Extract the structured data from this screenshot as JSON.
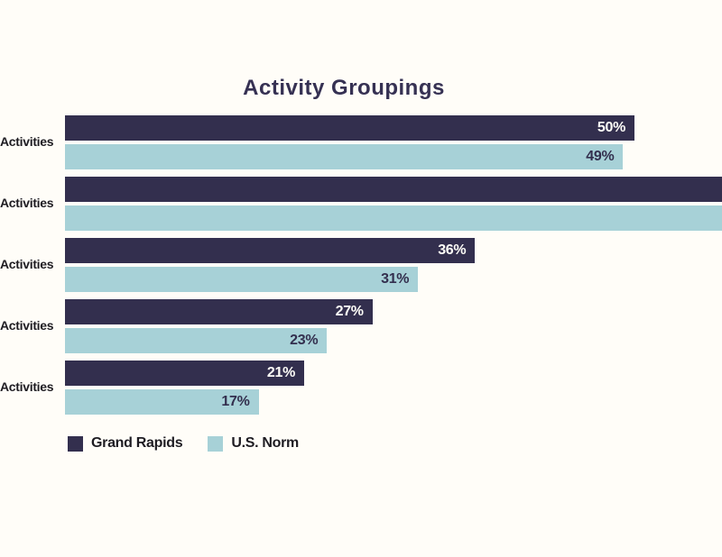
{
  "title": "Activity Groupings",
  "colors": {
    "background": "#fffdf8",
    "grand_rapids": "#332f4e",
    "us_norm": "#a7d1d7",
    "title_text": "#363153",
    "label_text": "#1e1c22",
    "value_on_dark": "#fdfcf7",
    "value_on_light": "#332f4e"
  },
  "groups": [
    {
      "label": "Activities",
      "grand_rapids": {
        "value": 50,
        "label": "50%",
        "clipped": false
      },
      "us_norm": {
        "value": 49,
        "label": "49%",
        "clipped": false
      }
    },
    {
      "label": "Activities",
      "grand_rapids": {
        "value": null,
        "label": "",
        "clipped": true
      },
      "us_norm": {
        "value": null,
        "label": "",
        "clipped": true
      }
    },
    {
      "label": "Activities",
      "grand_rapids": {
        "value": 36,
        "label": "36%",
        "clipped": false
      },
      "us_norm": {
        "value": 31,
        "label": "31%",
        "clipped": false
      }
    },
    {
      "label": "Activities",
      "grand_rapids": {
        "value": 27,
        "label": "27%",
        "clipped": false
      },
      "us_norm": {
        "value": 23,
        "label": "23%",
        "clipped": false
      }
    },
    {
      "label": "Activities",
      "grand_rapids": {
        "value": 21,
        "label": "21%",
        "clipped": false
      },
      "us_norm": {
        "value": 17,
        "label": "17%",
        "clipped": false
      }
    }
  ],
  "legend": [
    {
      "label": "Grand Rapids",
      "color": "#332f4e"
    },
    {
      "label": "U.S. Norm",
      "color": "#a7d1d7"
    }
  ],
  "chart_data": {
    "type": "bar",
    "orientation": "horizontal",
    "title": "Activity Groupings",
    "categories": [
      "Activities",
      "Activities",
      "Activities",
      "Activities",
      "Activities"
    ],
    "series": [
      {
        "name": "Grand Rapids",
        "color": "#332f4e",
        "values": [
          50,
          null,
          36,
          27,
          21
        ]
      },
      {
        "name": "U.S. Norm",
        "color": "#a7d1d7",
        "values": [
          49,
          null,
          31,
          23,
          17
        ]
      }
    ],
    "value_labels": [
      [
        "50%",
        "49%"
      ],
      [
        "",
        ""
      ],
      [
        "36%",
        "31%"
      ],
      [
        "27%",
        "23%"
      ],
      [
        "21%",
        "17%"
      ]
    ],
    "xlabel": "",
    "ylabel": "",
    "xlim": [
      0,
      57.7
    ],
    "grid": false,
    "legend_position": "bottom-left",
    "note": "Second group's bars extend past the right edge of the image; their values are not visible."
  }
}
